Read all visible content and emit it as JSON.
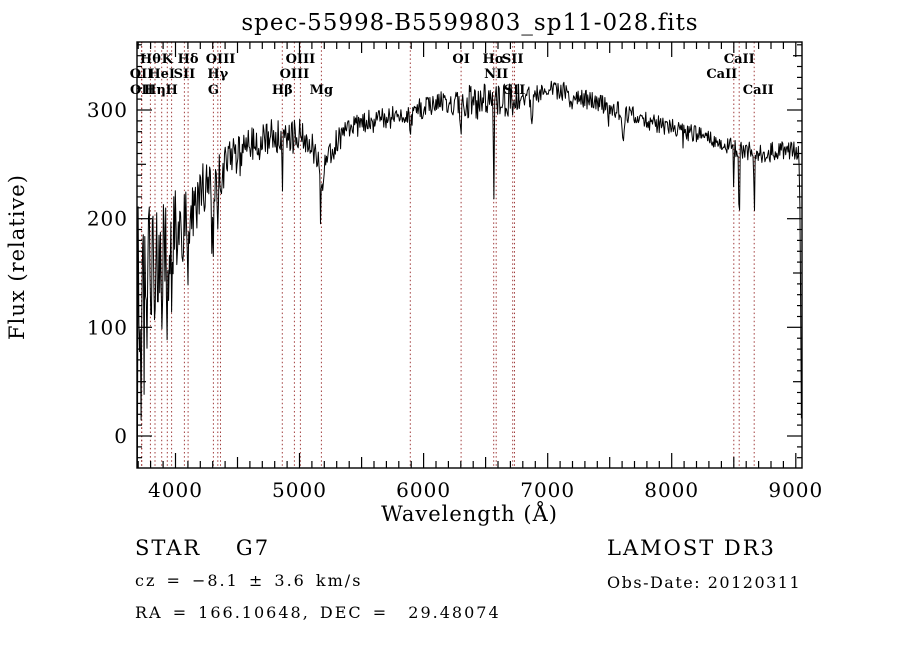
{
  "title": "spec-55998-B5599803_sp11-028.fits",
  "colors": {
    "background": "#ffffff",
    "spectrum": "#000000",
    "frame": "#000000",
    "line_marker": "#a03c3c"
  },
  "annotations": {
    "class_line": "STAR    G7",
    "cz_line": "cz = −8.1 ± 3.6 km/s",
    "radec_line": "RA = 166.10648, DEC =  29.48074",
    "survey": "LAMOST DR3",
    "obs_date": "Obs-Date: 20120311"
  },
  "chart_data": {
    "type": "line",
    "title": "spec-55998-B5599803_sp11-028.fits",
    "xlabel": "Wavelength (Å)",
    "ylabel": "Flux (relative)",
    "xlim": [
      3690,
      9050
    ],
    "ylim": [
      -29,
      362
    ],
    "x_ticks": [
      4000,
      5000,
      6000,
      7000,
      8000,
      9000
    ],
    "y_ticks": [
      0,
      100,
      200,
      300
    ],
    "x_minor_step": 100,
    "y_minor_step": 10,
    "grid": false,
    "legend": null,
    "series_name": "flux",
    "continuum_points": [
      [
        3693,
        30
      ],
      [
        3700,
        110
      ],
      [
        3715,
        122
      ],
      [
        3730,
        110
      ],
      [
        3745,
        118
      ],
      [
        3760,
        124
      ],
      [
        3775,
        128
      ],
      [
        3790,
        133
      ],
      [
        3805,
        140
      ],
      [
        3820,
        147
      ],
      [
        3840,
        152
      ],
      [
        3860,
        156
      ],
      [
        3880,
        160
      ],
      [
        3900,
        167
      ],
      [
        3920,
        170
      ],
      [
        3940,
        168
      ],
      [
        3960,
        172
      ],
      [
        3980,
        180
      ],
      [
        4000,
        188
      ],
      [
        4030,
        191
      ],
      [
        4060,
        193
      ],
      [
        4090,
        196
      ],
      [
        4120,
        200
      ],
      [
        4150,
        207
      ],
      [
        4180,
        214
      ],
      [
        4210,
        221
      ],
      [
        4240,
        227
      ],
      [
        4270,
        224
      ],
      [
        4300,
        221
      ],
      [
        4330,
        233
      ],
      [
        4360,
        240
      ],
      [
        4400,
        248
      ],
      [
        4450,
        253
      ],
      [
        4500,
        257
      ],
      [
        4550,
        261
      ],
      [
        4600,
        265
      ],
      [
        4650,
        269
      ],
      [
        4700,
        272
      ],
      [
        4750,
        275
      ],
      [
        4800,
        278
      ],
      [
        4850,
        274
      ],
      [
        4900,
        272
      ],
      [
        4950,
        275
      ],
      [
        5000,
        278
      ],
      [
        5050,
        272
      ],
      [
        5100,
        265
      ],
      [
        5150,
        256
      ],
      [
        5200,
        252
      ],
      [
        5250,
        262
      ],
      [
        5300,
        272
      ],
      [
        5350,
        280
      ],
      [
        5400,
        283
      ],
      [
        5450,
        285
      ],
      [
        5500,
        287
      ],
      [
        5550,
        289
      ],
      [
        5600,
        290
      ],
      [
        5650,
        291
      ],
      [
        5700,
        292
      ],
      [
        5750,
        294
      ],
      [
        5800,
        295
      ],
      [
        5850,
        296
      ],
      [
        5900,
        297
      ],
      [
        5950,
        300
      ],
      [
        6000,
        302
      ],
      [
        6050,
        304
      ],
      [
        6100,
        306
      ],
      [
        6150,
        307
      ],
      [
        6200,
        307
      ],
      [
        6250,
        306
      ],
      [
        6300,
        305
      ],
      [
        6350,
        306
      ],
      [
        6400,
        308
      ],
      [
        6450,
        308
      ],
      [
        6500,
        308
      ],
      [
        6550,
        307
      ],
      [
        6600,
        306
      ],
      [
        6650,
        308
      ],
      [
        6700,
        310
      ],
      [
        6750,
        311
      ],
      [
        6800,
        313
      ],
      [
        6850,
        314
      ],
      [
        6900,
        315
      ],
      [
        6950,
        316
      ],
      [
        7000,
        317
      ],
      [
        7050,
        318
      ],
      [
        7100,
        318
      ],
      [
        7150,
        317
      ],
      [
        7200,
        315
      ],
      [
        7250,
        313
      ],
      [
        7300,
        310
      ],
      [
        7350,
        308
      ],
      [
        7400,
        306
      ],
      [
        7450,
        304
      ],
      [
        7500,
        302
      ],
      [
        7550,
        300
      ],
      [
        7600,
        298
      ],
      [
        7650,
        296
      ],
      [
        7700,
        294
      ],
      [
        7750,
        292
      ],
      [
        7800,
        290
      ],
      [
        7850,
        288
      ],
      [
        7900,
        287
      ],
      [
        7950,
        285
      ],
      [
        8000,
        284
      ],
      [
        8050,
        282
      ],
      [
        8100,
        280
      ],
      [
        8150,
        279
      ],
      [
        8200,
        278
      ],
      [
        8250,
        275
      ],
      [
        8300,
        273
      ],
      [
        8350,
        271
      ],
      [
        8400,
        269
      ],
      [
        8450,
        267
      ],
      [
        8500,
        265
      ],
      [
        8550,
        264
      ],
      [
        8600,
        263
      ],
      [
        8650,
        261
      ],
      [
        8700,
        259
      ],
      [
        8750,
        258
      ],
      [
        8800,
        262
      ],
      [
        8850,
        263
      ],
      [
        8900,
        262
      ],
      [
        8950,
        263
      ],
      [
        9000,
        265
      ],
      [
        9020,
        260
      ],
      [
        9030,
        250
      ],
      [
        9038,
        140
      ],
      [
        9045,
        20
      ]
    ],
    "noise_halfwidth_points": [
      [
        3693,
        120
      ],
      [
        3710,
        110
      ],
      [
        3730,
        100
      ],
      [
        3750,
        92
      ],
      [
        3780,
        82
      ],
      [
        3810,
        72
      ],
      [
        3840,
        62
      ],
      [
        3870,
        57
      ],
      [
        3900,
        52
      ],
      [
        3930,
        48
      ],
      [
        3960,
        44
      ],
      [
        4000,
        40
      ],
      [
        4050,
        36
      ],
      [
        4100,
        33
      ],
      [
        4150,
        30
      ],
      [
        4200,
        28
      ],
      [
        4300,
        25
      ],
      [
        4400,
        22
      ],
      [
        4500,
        20
      ],
      [
        4600,
        18
      ],
      [
        4700,
        18
      ],
      [
        4800,
        18
      ],
      [
        4900,
        17
      ],
      [
        5000,
        16
      ],
      [
        5100,
        15
      ],
      [
        5200,
        14
      ],
      [
        5300,
        13
      ],
      [
        5400,
        12
      ],
      [
        5600,
        11
      ],
      [
        5800,
        10
      ],
      [
        6000,
        10
      ],
      [
        6200,
        10
      ],
      [
        6300,
        14
      ],
      [
        6400,
        17
      ],
      [
        6500,
        16
      ],
      [
        6600,
        17
      ],
      [
        6700,
        15
      ],
      [
        6800,
        11
      ],
      [
        7000,
        9
      ],
      [
        7200,
        9
      ],
      [
        7400,
        9
      ],
      [
        7600,
        9
      ],
      [
        7800,
        8
      ],
      [
        8000,
        8
      ],
      [
        8200,
        8
      ],
      [
        8400,
        8
      ],
      [
        8600,
        9
      ],
      [
        8800,
        9
      ],
      [
        9000,
        10
      ],
      [
        9045,
        6
      ]
    ],
    "absorption_features": [
      {
        "wl": 3798,
        "depth": 25,
        "width": 3
      },
      {
        "wl": 3835,
        "depth": 25,
        "width": 3
      },
      {
        "wl": 3889,
        "depth": 20,
        "width": 3
      },
      {
        "wl": 3934,
        "depth": 55,
        "width": 4
      },
      {
        "wl": 3969,
        "depth": 45,
        "width": 4
      },
      {
        "wl": 4102,
        "depth": 50,
        "width": 4
      },
      {
        "wl": 4290,
        "depth": 165,
        "width": 1.6
      },
      {
        "wl": 4306,
        "depth": 40,
        "width": 5
      },
      {
        "wl": 4341,
        "depth": 40,
        "width": 4
      },
      {
        "wl": 4861,
        "depth": 45,
        "width": 4
      },
      {
        "wl": 5170,
        "depth": 50,
        "width": 2
      },
      {
        "wl": 5176,
        "depth": 30,
        "width": 9
      },
      {
        "wl": 5893,
        "depth": 26,
        "width": 6
      },
      {
        "wl": 6302,
        "depth": 14,
        "width": 4
      },
      {
        "wl": 6360,
        "depth": 55,
        "width": 2
      },
      {
        "wl": 6565,
        "depth": 85,
        "width": 3.5
      },
      {
        "wl": 6718,
        "depth": 30,
        "width": 3
      },
      {
        "wl": 6733,
        "depth": 25,
        "width": 3
      },
      {
        "wl": 6870,
        "depth": 22,
        "width": 8
      },
      {
        "wl": 7190,
        "depth": 12,
        "width": 8
      },
      {
        "wl": 7320,
        "depth": 25,
        "width": 1.5
      },
      {
        "wl": 7490,
        "depth": 20,
        "width": 1.5
      },
      {
        "wl": 7605,
        "depth": 28,
        "width": 9
      },
      {
        "wl": 8090,
        "depth": 18,
        "width": 1.5
      },
      {
        "wl": 8500,
        "depth": 40,
        "width": 3
      },
      {
        "wl": 8544,
        "depth": 85,
        "width": 3
      },
      {
        "wl": 8665,
        "depth": 55,
        "width": 3
      },
      {
        "wl": 8790,
        "depth": 22,
        "width": 1.5
      }
    ],
    "line_markers": [
      {
        "wl": 3726,
        "label": "OII",
        "row": 2
      },
      {
        "wl": 3729,
        "label": "OII",
        "row": 3
      },
      {
        "wl": 3798,
        "label": "Hθ",
        "row": 1
      },
      {
        "wl": 3835,
        "label": "Hη",
        "row": 3
      },
      {
        "wl": 3889,
        "label": "HeI",
        "row": 2
      },
      {
        "wl": 3934,
        "label": "K",
        "row": 1
      },
      {
        "wl": 3969,
        "label": "H",
        "row": 3
      },
      {
        "wl": 4072,
        "label": "SII",
        "row": 2
      },
      {
        "wl": 4102,
        "label": "Hδ",
        "row": 1
      },
      {
        "wl": 4306,
        "label": "G",
        "row": 3
      },
      {
        "wl": 4341,
        "label": "Hγ",
        "row": 2
      },
      {
        "wl": 4363,
        "label": "OIII",
        "row": 1
      },
      {
        "wl": 4861,
        "label": "Hβ",
        "row": 3
      },
      {
        "wl": 4959,
        "label": "OIII",
        "row": 2
      },
      {
        "wl": 5007,
        "label": "OIII",
        "row": 1
      },
      {
        "wl": 5176,
        "label": "Mg",
        "row": 3
      },
      {
        "wl": 5893,
        "label": "",
        "row": 0
      },
      {
        "wl": 6302,
        "label": "OI",
        "row": 1
      },
      {
        "wl": 6565,
        "label": "Hα",
        "row": 1
      },
      {
        "wl": 6585,
        "label": "NII",
        "row": 2
      },
      {
        "wl": 6718,
        "label": "SII",
        "row": 1
      },
      {
        "wl": 6733,
        "label": "SII",
        "row": 3
      },
      {
        "wl": 8500,
        "label": "CaII",
        "row": 2,
        "dx": -12
      },
      {
        "wl": 8544,
        "label": "CaII",
        "row": 1
      },
      {
        "wl": 8665,
        "label": "CaII",
        "row": 3,
        "dx": 4
      }
    ]
  }
}
